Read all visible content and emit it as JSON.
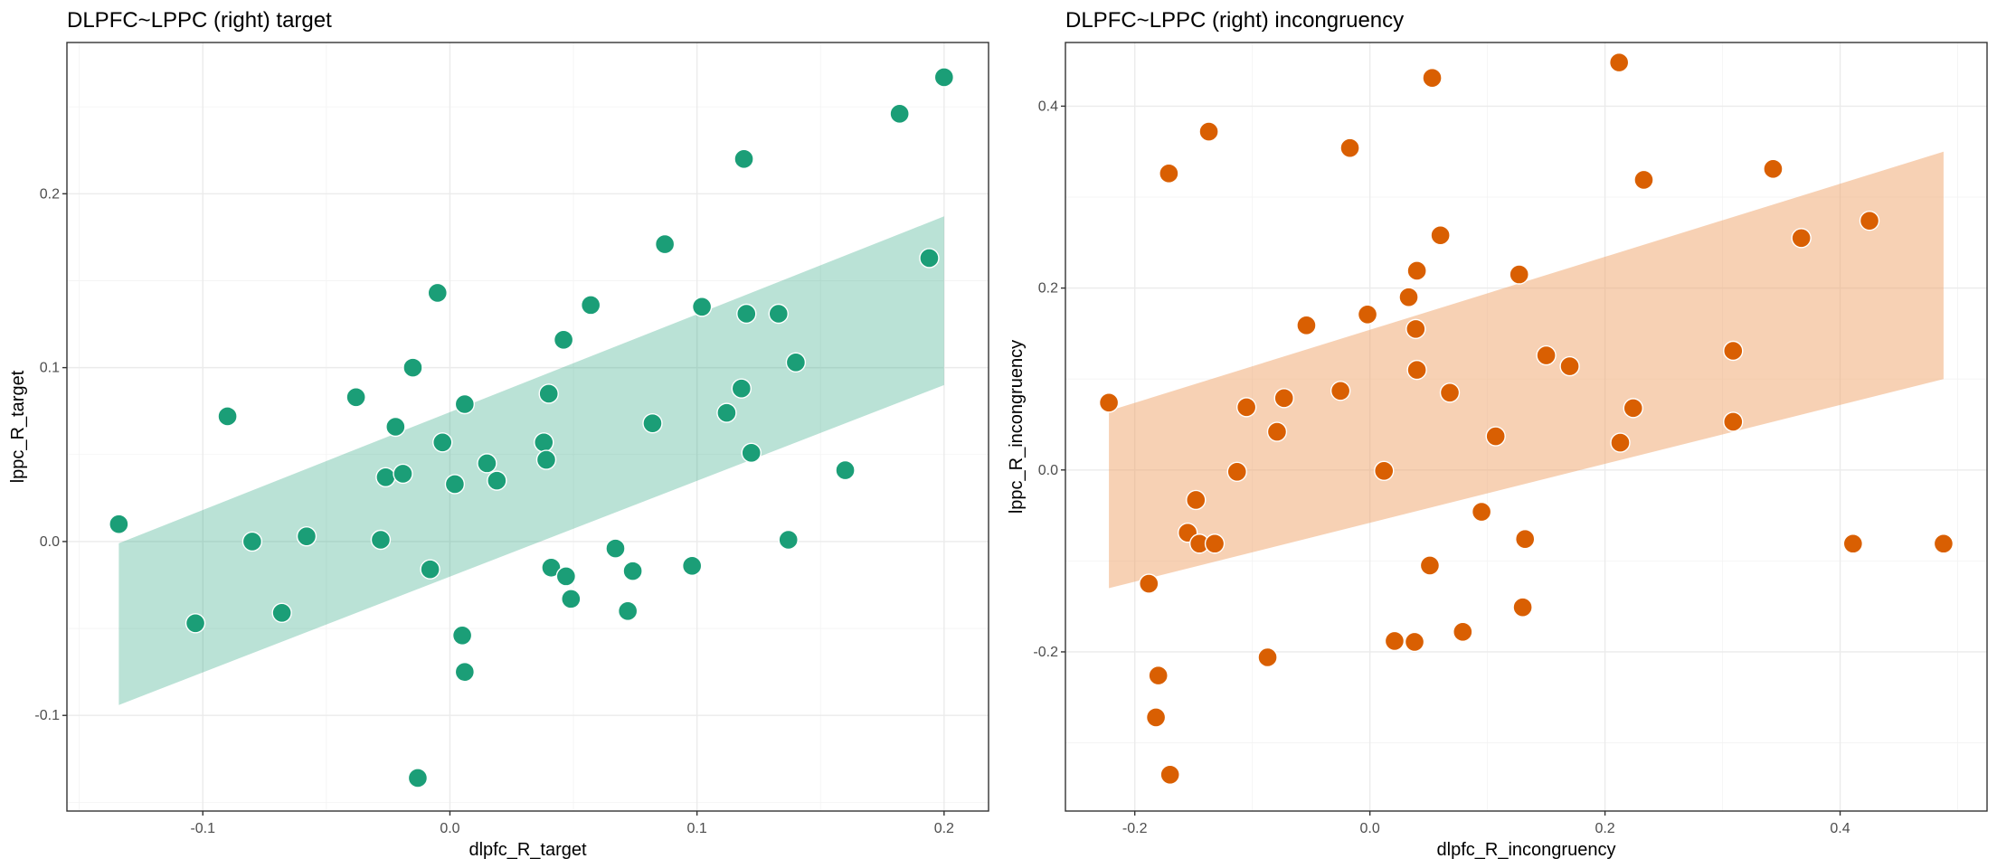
{
  "chart_data": [
    {
      "type": "scatter",
      "title": "DLPFC~LPPC (right) target",
      "xlabel": "dlpfc_R_target",
      "ylabel": "lppc_R_target",
      "xlim": [
        -0.155,
        0.218
      ],
      "ylim": [
        -0.155,
        0.287
      ],
      "xticks": [
        -0.1,
        0.0,
        0.1,
        0.2
      ],
      "xtick_labels": [
        "-0.1",
        "0.0",
        "0.1",
        "0.2"
      ],
      "yticks": [
        -0.1,
        0.0,
        0.1,
        0.2
      ],
      "ytick_labels": [
        "-0.1",
        "0.0",
        "0.1",
        "0.2"
      ],
      "grid": true,
      "color": "#1b9e77",
      "ribbon_color": "#1b9e77",
      "points": {
        "x": [
          -0.134,
          -0.103,
          -0.09,
          -0.08,
          -0.068,
          -0.058,
          -0.038,
          -0.028,
          -0.026,
          -0.022,
          -0.019,
          -0.015,
          -0.013,
          -0.008,
          -0.005,
          -0.003,
          0.002,
          0.005,
          0.006,
          0.006,
          0.015,
          0.019,
          0.038,
          0.039,
          0.04,
          0.041,
          0.046,
          0.047,
          0.049,
          0.057,
          0.067,
          0.072,
          0.074,
          0.082,
          0.087,
          0.098,
          0.102,
          0.112,
          0.118,
          0.119,
          0.12,
          0.122,
          0.133,
          0.137,
          0.14,
          0.16,
          0.182,
          0.194,
          0.2
        ],
        "y": [
          0.01,
          -0.047,
          0.072,
          0.0,
          -0.041,
          0.003,
          0.083,
          0.001,
          0.037,
          0.066,
          0.039,
          0.1,
          -0.136,
          -0.016,
          0.143,
          0.057,
          0.033,
          -0.054,
          -0.075,
          0.079,
          0.045,
          0.035,
          0.057,
          0.047,
          0.085,
          -0.015,
          0.116,
          -0.02,
          -0.033,
          0.136,
          -0.004,
          -0.04,
          -0.017,
          0.068,
          0.171,
          -0.014,
          0.135,
          0.074,
          0.088,
          0.22,
          0.131,
          0.051,
          0.131,
          0.001,
          0.103,
          0.041,
          0.246,
          0.163,
          0.267
        ]
      },
      "ribbon": {
        "x": [
          -0.134,
          0.2
        ],
        "upper": [
          -0.001,
          0.187
        ],
        "lower": [
          -0.094,
          0.09
        ]
      }
    },
    {
      "type": "scatter",
      "title": "DLPFC~LPPC (right) incongruency",
      "xlabel": "dlpfc_R_incongruency",
      "ylabel": "lppc_R_incongruency",
      "xlim": [
        -0.259,
        0.525
      ],
      "ylim": [
        -0.375,
        0.47
      ],
      "xticks": [
        -0.2,
        0.0,
        0.2,
        0.4
      ],
      "xtick_labels": [
        "-0.2",
        "0.0",
        "0.2",
        "0.4"
      ],
      "yticks": [
        -0.2,
        0.0,
        0.2,
        0.4
      ],
      "ytick_labels": [
        "-0.2",
        "0.0",
        "0.2",
        "0.4"
      ],
      "grid": true,
      "color": "#d95f02",
      "ribbon_color": "#f0a36a",
      "points": {
        "x": [
          -0.222,
          -0.188,
          -0.182,
          -0.18,
          -0.171,
          -0.17,
          -0.155,
          -0.148,
          -0.145,
          -0.132,
          -0.137,
          -0.113,
          -0.105,
          -0.087,
          -0.079,
          -0.073,
          -0.054,
          -0.025,
          -0.017,
          -0.002,
          0.012,
          0.021,
          0.033,
          0.038,
          0.039,
          0.04,
          0.04,
          0.051,
          0.053,
          0.06,
          0.068,
          0.079,
          0.095,
          0.107,
          0.127,
          0.13,
          0.132,
          0.15,
          0.17,
          0.212,
          0.213,
          0.224,
          0.233,
          0.309,
          0.309,
          0.343,
          0.367,
          0.411,
          0.425,
          0.488
        ],
        "y": [
          0.074,
          -0.125,
          -0.272,
          -0.226,
          0.326,
          -0.335,
          -0.069,
          -0.033,
          -0.081,
          -0.081,
          0.372,
          -0.002,
          0.069,
          -0.206,
          0.042,
          0.079,
          0.159,
          0.087,
          0.354,
          0.171,
          -0.001,
          -0.188,
          0.19,
          -0.189,
          0.155,
          0.11,
          0.219,
          -0.105,
          0.431,
          0.258,
          0.085,
          -0.178,
          -0.046,
          0.037,
          0.215,
          -0.151,
          -0.076,
          0.126,
          0.114,
          0.448,
          0.03,
          0.068,
          0.319,
          0.131,
          0.053,
          0.331,
          0.255,
          -0.081,
          0.274,
          -0.081
        ]
      },
      "ribbon": {
        "x": [
          -0.222,
          0.488
        ],
        "upper": [
          0.065,
          0.35
        ],
        "lower": [
          -0.13,
          0.1
        ]
      }
    }
  ]
}
